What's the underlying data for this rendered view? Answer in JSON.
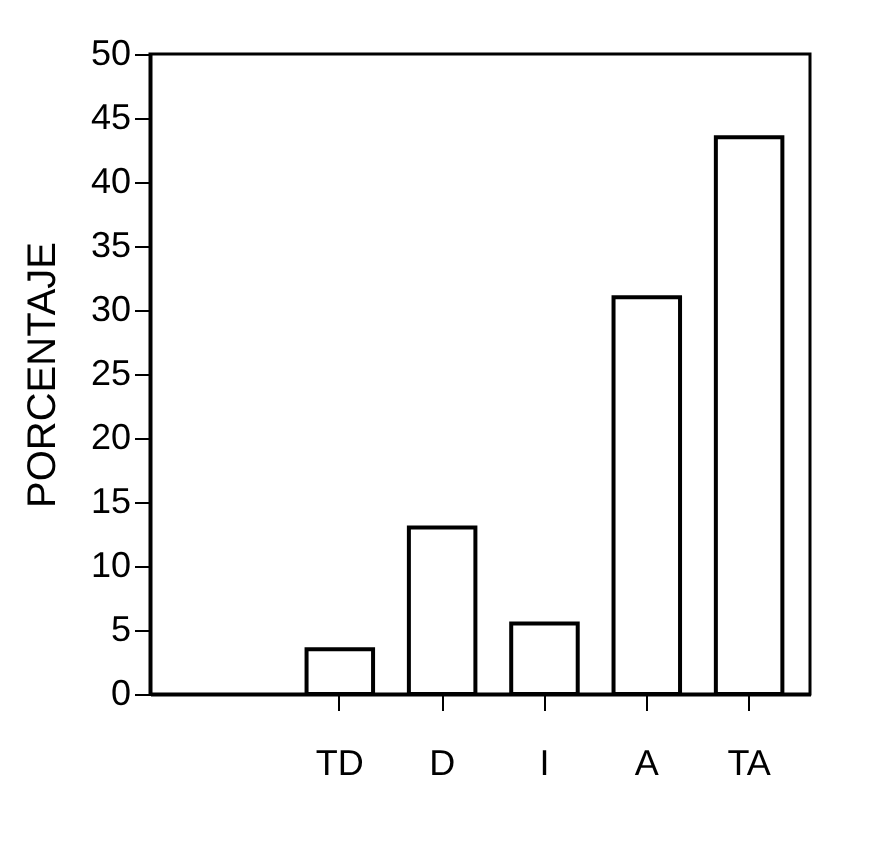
{
  "chart_data": {
    "type": "bar",
    "ylabel": "PORCENTAJE",
    "categories": [
      "TD",
      "D",
      "I",
      "A",
      "TA"
    ],
    "values": [
      3.5,
      13,
      5.5,
      31,
      43.5
    ],
    "color": "#ffffff",
    "ylim": [
      0,
      50
    ],
    "yticks": [
      0,
      5,
      10,
      15,
      20,
      25,
      30,
      35,
      40,
      45,
      50
    ],
    "grid": false
  }
}
